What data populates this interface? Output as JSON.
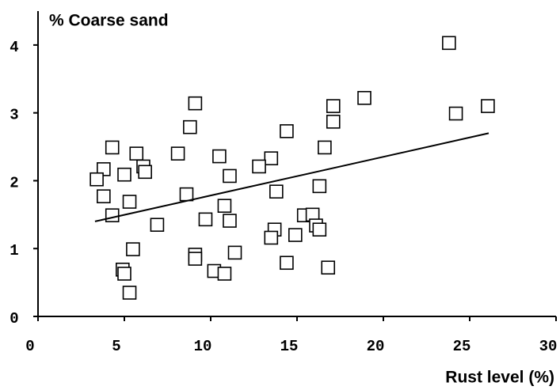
{
  "chart_data": {
    "type": "scatter",
    "title": "% Coarse sand",
    "x_label": "Rust level (%)",
    "xlim": [
      0,
      30
    ],
    "xticks": [
      0,
      5,
      10,
      15,
      20,
      25,
      30
    ],
    "ylim": [
      0,
      4.5
    ],
    "yticks": [
      0,
      1,
      2,
      3,
      4
    ],
    "color": "#000000",
    "x": [
      23.8,
      26.05,
      24.2,
      18.9,
      17.1,
      17.1,
      16.6,
      16.3,
      14.4,
      13.5,
      12.8,
      13.8,
      15.4,
      15.9,
      16.1,
      16.3,
      14.9,
      13.7,
      13.5,
      14.4,
      16.8,
      9.1,
      8.8,
      8.1,
      8.6,
      10.5,
      11.1,
      10.8,
      9.7,
      11.1,
      11.4,
      9.1,
      9.1,
      10.2,
      10.8,
      4.3,
      5.7,
      6.1,
      6.2,
      3.8,
      5.0,
      3.4,
      3.8,
      5.3,
      4.3,
      6.9,
      5.5,
      4.9,
      5.0,
      5.3
    ],
    "values": [
      4.03,
      3.1,
      2.99,
      3.22,
      3.1,
      2.87,
      2.49,
      1.92,
      2.73,
      2.33,
      2.21,
      1.84,
      1.49,
      1.5,
      1.34,
      1.28,
      1.2,
      1.28,
      1.16,
      0.79,
      0.72,
      3.14,
      2.79,
      2.4,
      1.8,
      2.36,
      2.07,
      1.63,
      1.43,
      1.41,
      0.94,
      0.91,
      0.85,
      0.67,
      0.63,
      2.49,
      2.4,
      2.21,
      2.13,
      2.17,
      2.09,
      2.02,
      1.77,
      1.69,
      1.49,
      1.35,
      0.99,
      0.69,
      0.63,
      0.35
    ],
    "trend": {
      "x": [
        3.3,
        26.1
      ],
      "values": [
        1.4,
        2.7
      ]
    }
  }
}
